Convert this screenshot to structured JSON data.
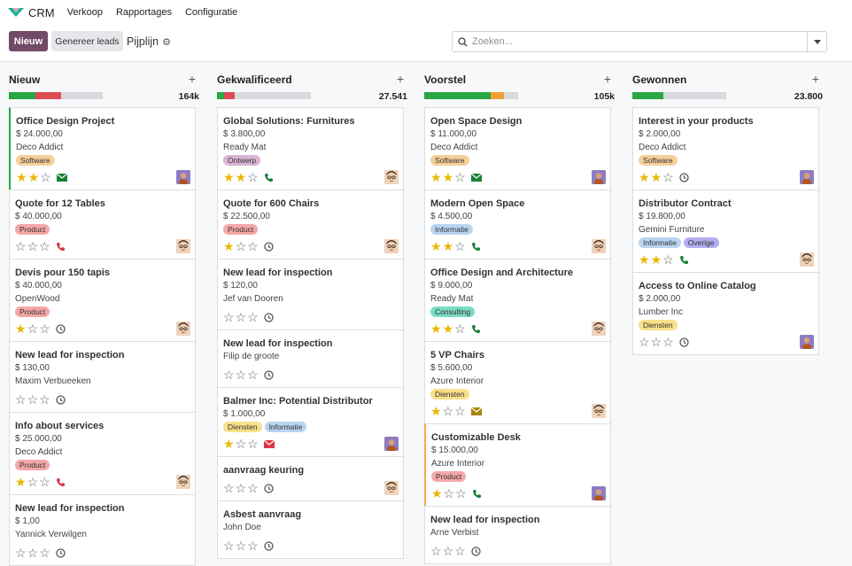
{
  "nav": {
    "app_name": "CRM",
    "menu": [
      "Verkoop",
      "Rapportages",
      "Configuratie"
    ]
  },
  "control": {
    "new_label": "Nieuw",
    "generate_label": "Genereer leads",
    "breadcrumb": "Pijplijn",
    "search_placeholder": "Zoeken..."
  },
  "colors": {
    "brand": "#714b67",
    "green": "#28a745",
    "red": "#dc4c54",
    "orange": "#f0a030",
    "grey": "#d9dadd",
    "tag_software": "#f6cf9a",
    "tag_product": "#f5a7a7",
    "tag_ontwerp": "#d9b4d4",
    "tag_informatie": "#b8d4f0",
    "tag_consulting": "#7bdcc5",
    "tag_diensten": "#f9e08a",
    "tag_overige": "#b3aef0"
  },
  "columns": [
    {
      "title": "Nieuw",
      "total": "164k",
      "progress": [
        {
          "color": "green",
          "pct": 28
        },
        {
          "color": "red",
          "pct": 28
        }
      ],
      "cards": [
        {
          "title": "Office Design Project",
          "amount": "$ 24.000,00",
          "company": "Deco Addict",
          "tags": [
            {
              "label": "Software",
              "color": "tag_software"
            }
          ],
          "stars": 2,
          "activity": "envelope-icon",
          "activity_color": "#1a7f37",
          "avatar": "avatar-photo",
          "accent": "green"
        },
        {
          "title": "Quote for 12 Tables",
          "amount": "$ 40.000,00",
          "company": "",
          "tags": [
            {
              "label": "Product",
              "color": "tag_product"
            }
          ],
          "stars": 0,
          "activity": "phone-icon",
          "activity_color": "#dc3545",
          "avatar": "avatar-man",
          "accent": ""
        },
        {
          "title": "Devis pour 150 tapis",
          "amount": "$ 40.000,00",
          "company": "OpenWood",
          "tags": [
            {
              "label": "Product",
              "color": "tag_product"
            }
          ],
          "stars": 1,
          "activity": "clock-icon",
          "activity_color": "#555",
          "avatar": "avatar-man",
          "accent": ""
        },
        {
          "title": "New lead for inspection",
          "amount": "$ 130,00",
          "company": "Maxim Verbueeken",
          "tags": [],
          "stars": 0,
          "activity": "clock-icon",
          "activity_color": "#555",
          "avatar": "",
          "accent": ""
        },
        {
          "title": "Info about services",
          "amount": "$ 25.000,00",
          "company": "Deco Addict",
          "tags": [
            {
              "label": "Product",
              "color": "tag_product"
            }
          ],
          "stars": 1,
          "activity": "phone-icon",
          "activity_color": "#dc3545",
          "avatar": "avatar-man",
          "accent": ""
        },
        {
          "title": "New lead for inspection",
          "amount": "$ 1,00",
          "company": "Yannick Verwilgen",
          "tags": [],
          "stars": 0,
          "activity": "clock-icon",
          "activity_color": "#555",
          "avatar": "",
          "accent": ""
        }
      ]
    },
    {
      "title": "Gekwalificeerd",
      "total": "27.541",
      "progress": [
        {
          "color": "green",
          "pct": 8
        },
        {
          "color": "red",
          "pct": 11
        }
      ],
      "cards": [
        {
          "title": "Global Solutions: Furnitures",
          "amount": "$ 3.800,00",
          "company": "Ready Mat",
          "tags": [
            {
              "label": "Ontwerp",
              "color": "tag_ontwerp"
            }
          ],
          "stars": 2,
          "activity": "phone-icon",
          "activity_color": "#1a7f37",
          "avatar": "avatar-man",
          "accent": ""
        },
        {
          "title": "Quote for 600 Chairs",
          "amount": "$ 22.500,00",
          "company": "",
          "tags": [
            {
              "label": "Product",
              "color": "tag_product"
            }
          ],
          "stars": 1,
          "activity": "clock-icon",
          "activity_color": "#555",
          "avatar": "avatar-man",
          "accent": ""
        },
        {
          "title": "New lead for inspection",
          "amount": "$ 120,00",
          "company": "Jef van Dooren",
          "tags": [],
          "stars": 0,
          "activity": "clock-icon",
          "activity_color": "#555",
          "avatar": "",
          "accent": ""
        },
        {
          "title": "New lead for inspection",
          "amount": "",
          "company": "Filip de groote",
          "tags": [],
          "stars": 0,
          "activity": "clock-icon",
          "activity_color": "#555",
          "avatar": "",
          "accent": ""
        },
        {
          "title": "Balmer Inc: Potential Distributor",
          "amount": "$ 1.000,00",
          "company": "",
          "tags": [
            {
              "label": "Diensten",
              "color": "tag_diensten"
            },
            {
              "label": "Informatie",
              "color": "tag_informatie"
            }
          ],
          "stars": 1,
          "activity": "envelope-icon",
          "activity_color": "#dc3545",
          "avatar": "avatar-photo",
          "accent": ""
        },
        {
          "title": "aanvraag keuring",
          "amount": "",
          "company": "",
          "tags": [],
          "stars": 0,
          "activity": "clock-icon",
          "activity_color": "#555",
          "avatar": "avatar-man",
          "accent": ""
        },
        {
          "title": "Asbest aanvraag",
          "amount": "",
          "company": "John Doe",
          "tags": [],
          "stars": 0,
          "activity": "clock-icon",
          "activity_color": "#555",
          "avatar": "",
          "accent": ""
        }
      ]
    },
    {
      "title": "Voorstel",
      "total": "105k",
      "progress": [
        {
          "color": "green",
          "pct": 71
        },
        {
          "color": "orange",
          "pct": 14
        }
      ],
      "cards": [
        {
          "title": "Open Space Design",
          "amount": "$ 11.000,00",
          "company": "Deco Addict",
          "tags": [
            {
              "label": "Software",
              "color": "tag_software"
            }
          ],
          "stars": 2,
          "activity": "envelope-icon",
          "activity_color": "#1a7f37",
          "avatar": "avatar-photo",
          "accent": ""
        },
        {
          "title": "Modern Open Space",
          "amount": "$ 4.500,00",
          "company": "",
          "tags": [
            {
              "label": "Informatie",
              "color": "tag_informatie"
            }
          ],
          "stars": 2,
          "activity": "phone-icon",
          "activity_color": "#1a7f37",
          "avatar": "avatar-man",
          "accent": ""
        },
        {
          "title": "Office Design and Architecture",
          "amount": "$ 9.000,00",
          "company": "Ready Mat",
          "tags": [
            {
              "label": "Consulting",
              "color": "tag_consulting"
            }
          ],
          "stars": 2,
          "activity": "phone-icon",
          "activity_color": "#1a7f37",
          "avatar": "avatar-man",
          "accent": ""
        },
        {
          "title": "5 VP Chairs",
          "amount": "$ 5.600,00",
          "company": "Azure Interior",
          "tags": [
            {
              "label": "Diensten",
              "color": "tag_diensten"
            }
          ],
          "stars": 1,
          "activity": "envelope-icon",
          "activity_color": "#a88400",
          "avatar": "avatar-man",
          "accent": ""
        },
        {
          "title": "Customizable Desk",
          "amount": "$ 15.000,00",
          "company": "Azure Interior",
          "tags": [
            {
              "label": "Product",
              "color": "tag_product"
            }
          ],
          "stars": 1,
          "activity": "phone-icon",
          "activity_color": "#1a7f37",
          "avatar": "avatar-photo",
          "accent": "yellow"
        },
        {
          "title": "New lead for inspection",
          "amount": "",
          "company": "Arne Verbist",
          "tags": [],
          "stars": 0,
          "activity": "clock-icon",
          "activity_color": "#555",
          "avatar": "",
          "accent": ""
        }
      ]
    },
    {
      "title": "Gewonnen",
      "total": "23.800",
      "progress": [
        {
          "color": "green",
          "pct": 33
        }
      ],
      "cards": [
        {
          "title": "Interest in your products",
          "amount": "$ 2.000,00",
          "company": "Deco Addict",
          "tags": [
            {
              "label": "Software",
              "color": "tag_software"
            }
          ],
          "stars": 2,
          "activity": "clock-icon",
          "activity_color": "#555",
          "avatar": "avatar-photo",
          "accent": ""
        },
        {
          "title": "Distributor Contract",
          "amount": "$ 19.800,00",
          "company": "Gemini Furniture",
          "tags": [
            {
              "label": "Informatie",
              "color": "tag_informatie"
            },
            {
              "label": "Overige",
              "color": "tag_overige"
            }
          ],
          "stars": 2,
          "activity": "phone-icon",
          "activity_color": "#1a7f37",
          "avatar": "avatar-man",
          "accent": ""
        },
        {
          "title": "Access to Online Catalog",
          "amount": "$ 2.000,00",
          "company": "Lumber Inc",
          "tags": [
            {
              "label": "Diensten",
              "color": "tag_diensten"
            }
          ],
          "stars": 0,
          "activity": "clock-icon",
          "activity_color": "#555",
          "avatar": "avatar-photo",
          "accent": ""
        }
      ]
    }
  ]
}
